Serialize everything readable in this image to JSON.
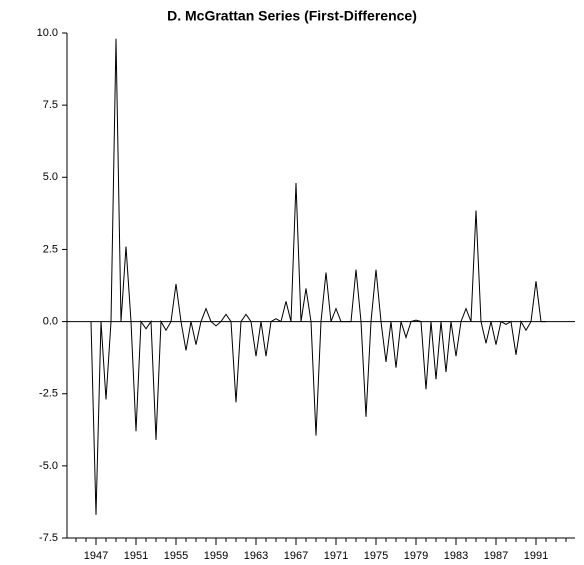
{
  "chart_data": {
    "type": "line",
    "title": "D. McGrattan Series (First-Difference)",
    "x": [
      1946.5,
      1947,
      1947.5,
      1948,
      1948.5,
      1949,
      1949.5,
      1950,
      1950.5,
      1951,
      1951.5,
      1952,
      1952.5,
      1953,
      1953.5,
      1954,
      1954.5,
      1955,
      1955.5,
      1956,
      1956.5,
      1957,
      1957.5,
      1958,
      1958.5,
      1959,
      1959.5,
      1960,
      1960.5,
      1961,
      1961.5,
      1962,
      1962.5,
      1963,
      1963.5,
      1964,
      1964.5,
      1965,
      1965.5,
      1966,
      1966.5,
      1967,
      1967.5,
      1968,
      1968.5,
      1969,
      1969.5,
      1970,
      1970.5,
      1971,
      1971.5,
      1972,
      1972.5,
      1973,
      1973.5,
      1974,
      1974.5,
      1975,
      1975.5,
      1976,
      1976.5,
      1977,
      1977.5,
      1978,
      1978.5,
      1979,
      1979.5,
      1980,
      1980.5,
      1981,
      1981.5,
      1982,
      1982.5,
      1983,
      1983.5,
      1984,
      1984.5,
      1985,
      1985.5,
      1986,
      1986.5,
      1987,
      1987.5,
      1988,
      1988.5,
      1989,
      1989.5,
      1990,
      1990.5,
      1991,
      1991.5,
      1992
    ],
    "values": [
      0,
      -6.7,
      0,
      -2.7,
      0,
      9.8,
      0,
      2.6,
      0,
      -3.8,
      0,
      -0.25,
      0,
      -4.1,
      0,
      -0.3,
      0,
      1.3,
      0,
      -1.0,
      0,
      -0.8,
      0,
      0.45,
      0,
      -0.15,
      0,
      0.25,
      0,
      -2.8,
      0,
      0.25,
      0,
      -1.2,
      0,
      -1.2,
      0,
      0.1,
      0,
      0.7,
      0,
      4.8,
      0,
      1.15,
      0,
      -3.95,
      0,
      1.7,
      0,
      0.45,
      0,
      0.0,
      0,
      1.8,
      0,
      -3.3,
      0,
      1.8,
      0,
      -1.4,
      0,
      -1.6,
      0,
      -0.55,
      0,
      0.05,
      0,
      -2.35,
      0,
      -2.0,
      0,
      -1.75,
      0,
      -1.2,
      0,
      0.45,
      0,
      3.85,
      0,
      -0.75,
      0,
      -0.8,
      0,
      -0.1,
      0,
      -1.15,
      0,
      -0.3,
      0,
      1.4,
      0,
      0
    ],
    "color": "#000000",
    "xlim": [
      1944.1,
      1994.9
    ],
    "xticks": [
      1947,
      1951,
      1955,
      1959,
      1963,
      1967,
      1971,
      1975,
      1979,
      1983,
      1987,
      1991
    ],
    "xminorticks": [
      1945,
      1946,
      1947,
      1948,
      1949,
      1950,
      1951,
      1952,
      1953,
      1954,
      1955,
      1956,
      1957,
      1958,
      1959,
      1960,
      1961,
      1962,
      1963,
      1964,
      1965,
      1966,
      1967,
      1968,
      1969,
      1970,
      1971,
      1972,
      1973,
      1974,
      1975,
      1976,
      1977,
      1978,
      1979,
      1980,
      1981,
      1982,
      1983,
      1984,
      1985,
      1986,
      1987,
      1988,
      1989,
      1990,
      1991,
      1992,
      1993,
      1994
    ],
    "ylim": [
      -7.5,
      10
    ],
    "yticks": [
      {
        "value": -7.5,
        "label": "-7.5"
      },
      {
        "value": -5,
        "label": "-5.0"
      },
      -2.5,
      {
        "value": 0,
        "label": "0.0"
      },
      2.5,
      {
        "value": 5,
        "label": "5.0"
      },
      7.5,
      {
        "value": 10,
        "label": "10.0"
      }
    ],
    "zero_line": true
  }
}
